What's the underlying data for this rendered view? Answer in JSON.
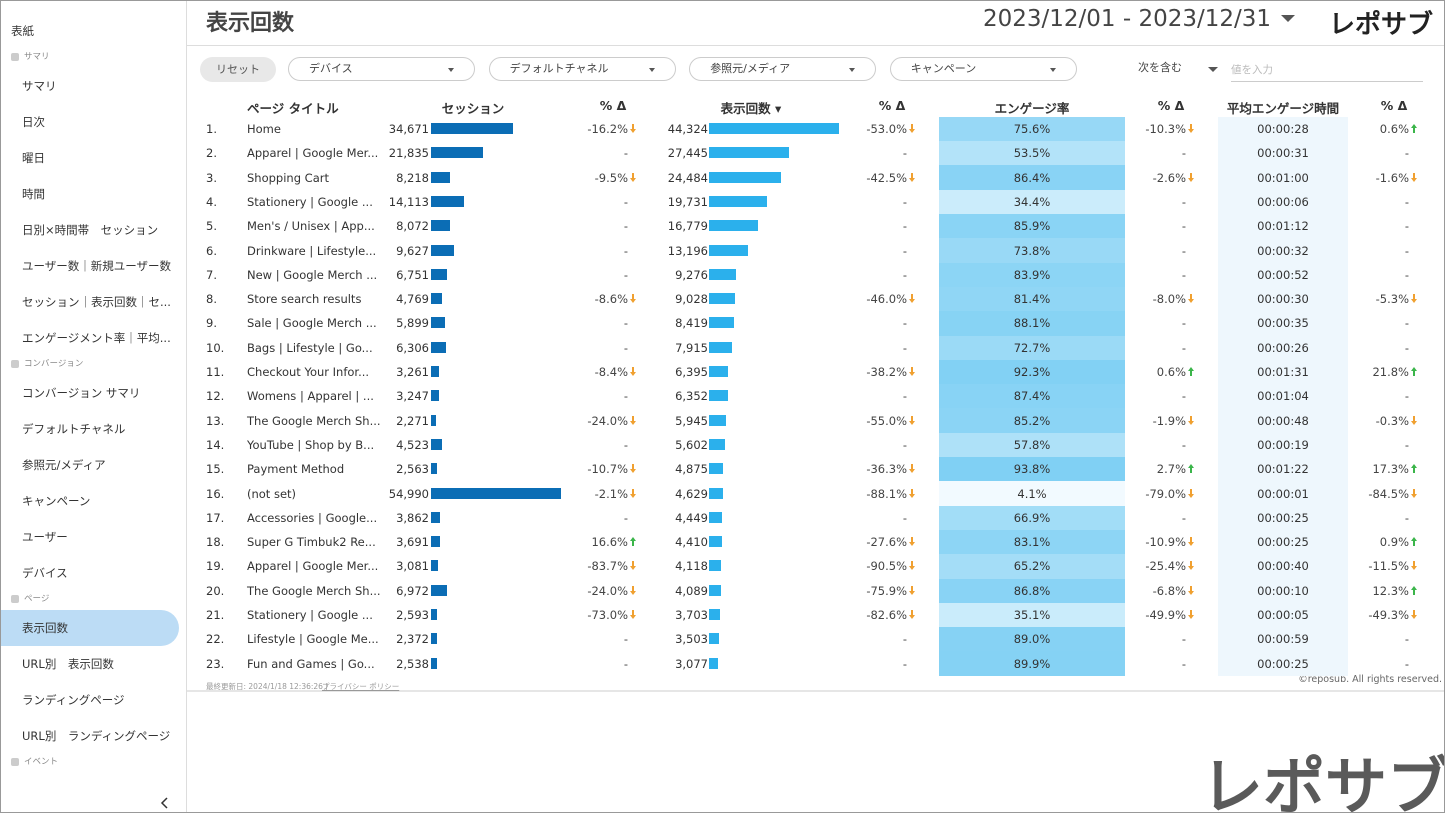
{
  "header": {
    "title": "表示回数",
    "date_range": "2023/12/01 - 2023/12/31",
    "logo": "レポサブ"
  },
  "sidebar": {
    "items": [
      {
        "item": "表紙"
      },
      {
        "section": "サマリ"
      },
      {
        "item": "サマリ"
      },
      {
        "item": "日次"
      },
      {
        "item": "曜日"
      },
      {
        "item": "時間"
      },
      {
        "item": "日別×時間帯　セッション"
      },
      {
        "item": "ユーザー数｜新規ユーザー数"
      },
      {
        "item": "セッション｜表示回数｜セ..."
      },
      {
        "item": "エンゲージメント率｜平均..."
      },
      {
        "section": "コンバージョン"
      },
      {
        "item": "コンバージョン サマリ"
      },
      {
        "item": "デフォルトチャネル"
      },
      {
        "item": "参照元/メディア"
      },
      {
        "item": "キャンペーン"
      },
      {
        "item": "ユーザー"
      },
      {
        "item": "デバイス"
      },
      {
        "section": "ページ"
      },
      {
        "item": "表示回数",
        "active": true
      },
      {
        "item": "URL別　表示回数"
      },
      {
        "item": "ランディングページ"
      },
      {
        "item": "URL別　ランディングページ"
      },
      {
        "section": "イベント"
      }
    ]
  },
  "filters": {
    "reset": "リセット",
    "dropdowns": [
      "デバイス",
      "デフォルトチャネル",
      "参照元/メディア",
      "キャンペーン"
    ],
    "match": "次を含む",
    "input_placeholder": "値を入力"
  },
  "table": {
    "columns": [
      "ページ タイトル",
      "セッション",
      "% Δ",
      "表示回数 ▾",
      "% Δ",
      "エンゲージ率",
      "% Δ",
      "平均エンゲージ時間",
      "% Δ"
    ],
    "rows": [
      [
        "1.",
        "Home",
        {
          "value": 34671,
          "label": "34,671"
        },
        "-16.2%",
        {
          "value": 44324,
          "label": "44,324"
        },
        "-53.0%",
        {
          "value": 75.6,
          "label": "75.6%"
        },
        "-10.3%",
        "00:00:28",
        "0.6%"
      ],
      [
        "2.",
        "Apparel | Google Mer...",
        {
          "value": 21835,
          "label": "21,835"
        },
        "-",
        {
          "value": 27445,
          "label": "27,445"
        },
        "-",
        {
          "value": 53.5,
          "label": "53.5%"
        },
        "-",
        "00:00:31",
        "-"
      ],
      [
        "3.",
        "Shopping Cart",
        {
          "value": 8218,
          "label": "8,218"
        },
        "-9.5%",
        {
          "value": 24484,
          "label": "24,484"
        },
        "-42.5%",
        {
          "value": 86.4,
          "label": "86.4%"
        },
        "-2.6%",
        "00:01:00",
        "-1.6%"
      ],
      [
        "4.",
        "Stationery | Google ...",
        {
          "value": 14113,
          "label": "14,113"
        },
        "-",
        {
          "value": 19731,
          "label": "19,731"
        },
        "-",
        {
          "value": 34.4,
          "label": "34.4%"
        },
        "-",
        "00:00:06",
        "-"
      ],
      [
        "5.",
        "Men's / Unisex | App...",
        {
          "value": 8072,
          "label": "8,072"
        },
        "-",
        {
          "value": 16779,
          "label": "16,779"
        },
        "-",
        {
          "value": 85.9,
          "label": "85.9%"
        },
        "-",
        "00:01:12",
        "-"
      ],
      [
        "6.",
        "Drinkware | Lifestyle...",
        {
          "value": 9627,
          "label": "9,627"
        },
        "-",
        {
          "value": 13196,
          "label": "13,196"
        },
        "-",
        {
          "value": 73.8,
          "label": "73.8%"
        },
        "-",
        "00:00:32",
        "-"
      ],
      [
        "7.",
        "New | Google Merch ...",
        {
          "value": 6751,
          "label": "6,751"
        },
        "-",
        {
          "value": 9276,
          "label": "9,276"
        },
        "-",
        {
          "value": 83.9,
          "label": "83.9%"
        },
        "-",
        "00:00:52",
        "-"
      ],
      [
        "8.",
        "Store search results",
        {
          "value": 4769,
          "label": "4,769"
        },
        "-8.6%",
        {
          "value": 9028,
          "label": "9,028"
        },
        "-46.0%",
        {
          "value": 81.4,
          "label": "81.4%"
        },
        "-8.0%",
        "00:00:30",
        "-5.3%"
      ],
      [
        "9.",
        "Sale | Google Merch ...",
        {
          "value": 5899,
          "label": "5,899"
        },
        "-",
        {
          "value": 8419,
          "label": "8,419"
        },
        "-",
        {
          "value": 88.1,
          "label": "88.1%"
        },
        "-",
        "00:00:35",
        "-"
      ],
      [
        "10.",
        "Bags | Lifestyle | Go...",
        {
          "value": 6306,
          "label": "6,306"
        },
        "-",
        {
          "value": 7915,
          "label": "7,915"
        },
        "-",
        {
          "value": 72.7,
          "label": "72.7%"
        },
        "-",
        "00:00:26",
        "-"
      ],
      [
        "11.",
        "Checkout Your Infor...",
        {
          "value": 3261,
          "label": "3,261"
        },
        "-8.4%",
        {
          "value": 6395,
          "label": "6,395"
        },
        "-38.2%",
        {
          "value": 92.3,
          "label": "92.3%"
        },
        "0.6%",
        "00:01:31",
        "21.8%"
      ],
      [
        "12.",
        "Womens | Apparel | ...",
        {
          "value": 3247,
          "label": "3,247"
        },
        "-",
        {
          "value": 6352,
          "label": "6,352"
        },
        "-",
        {
          "value": 87.4,
          "label": "87.4%"
        },
        "-",
        "00:01:04",
        "-"
      ],
      [
        "13.",
        "The Google Merch Sh...",
        {
          "value": 2271,
          "label": "2,271"
        },
        "-24.0%",
        {
          "value": 5945,
          "label": "5,945"
        },
        "-55.0%",
        {
          "value": 85.2,
          "label": "85.2%"
        },
        "-1.9%",
        "00:00:48",
        "-0.3%"
      ],
      [
        "14.",
        "YouTube | Shop by B...",
        {
          "value": 4523,
          "label": "4,523"
        },
        "-",
        {
          "value": 5602,
          "label": "5,602"
        },
        "-",
        {
          "value": 57.8,
          "label": "57.8%"
        },
        "-",
        "00:00:19",
        "-"
      ],
      [
        "15.",
        "Payment Method",
        {
          "value": 2563,
          "label": "2,563"
        },
        "-10.7%",
        {
          "value": 4875,
          "label": "4,875"
        },
        "-36.3%",
        {
          "value": 93.8,
          "label": "93.8%"
        },
        "2.7%",
        "00:01:22",
        "17.3%"
      ],
      [
        "16.",
        "(not set)",
        {
          "value": 54990,
          "label": "54,990"
        },
        "-2.1%",
        {
          "value": 4629,
          "label": "4,629"
        },
        "-88.1%",
        {
          "value": 4.1,
          "label": "4.1%"
        },
        "-79.0%",
        "00:00:01",
        "-84.5%"
      ],
      [
        "17.",
        "Accessories | Google...",
        {
          "value": 3862,
          "label": "3,862"
        },
        "-",
        {
          "value": 4449,
          "label": "4,449"
        },
        "-",
        {
          "value": 66.9,
          "label": "66.9%"
        },
        "-",
        "00:00:25",
        "-"
      ],
      [
        "18.",
        "Super G Timbuk2 Re...",
        {
          "value": 3691,
          "label": "3,691"
        },
        "16.6%",
        {
          "value": 4410,
          "label": "4,410"
        },
        "-27.6%",
        {
          "value": 83.1,
          "label": "83.1%"
        },
        "-10.9%",
        "00:00:25",
        "0.9%"
      ],
      [
        "19.",
        "Apparel | Google Mer...",
        {
          "value": 3081,
          "label": "3,081"
        },
        "-83.7%",
        {
          "value": 4118,
          "label": "4,118"
        },
        "-90.5%",
        {
          "value": 65.2,
          "label": "65.2%"
        },
        "-25.4%",
        "00:00:40",
        "-11.5%"
      ],
      [
        "20.",
        "The Google Merch Sh...",
        {
          "value": 6972,
          "label": "6,972"
        },
        "-24.0%",
        {
          "value": 4089,
          "label": "4,089"
        },
        "-75.9%",
        {
          "value": 86.8,
          "label": "86.8%"
        },
        "-6.8%",
        "00:00:10",
        "12.3%"
      ],
      [
        "21.",
        "Stationery | Google ...",
        {
          "value": 2593,
          "label": "2,593"
        },
        "-73.0%",
        {
          "value": 3703,
          "label": "3,703"
        },
        "-82.6%",
        {
          "value": 35.1,
          "label": "35.1%"
        },
        "-49.9%",
        "00:00:05",
        "-49.3%"
      ],
      [
        "22.",
        "Lifestyle | Google Me...",
        {
          "value": 2372,
          "label": "2,372"
        },
        "-",
        {
          "value": 3503,
          "label": "3,503"
        },
        "-",
        {
          "value": 89.0,
          "label": "89.0%"
        },
        "-",
        "00:00:59",
        "-"
      ],
      [
        "23.",
        "Fun and Games | Go...",
        {
          "value": 2538,
          "label": "2,538"
        },
        "-",
        {
          "value": 3077,
          "label": "3,077"
        },
        "-",
        {
          "value": 89.9,
          "label": "89.9%"
        },
        "-",
        "00:00:25",
        "-"
      ]
    ]
  },
  "footer": {
    "updated": "最終更新日: 2024/1/18 12:36:26 |",
    "privacy": "プライバシー ポリシー",
    "copyright": "©reposub. All rights reserved."
  },
  "watermark": "レポサブ"
}
